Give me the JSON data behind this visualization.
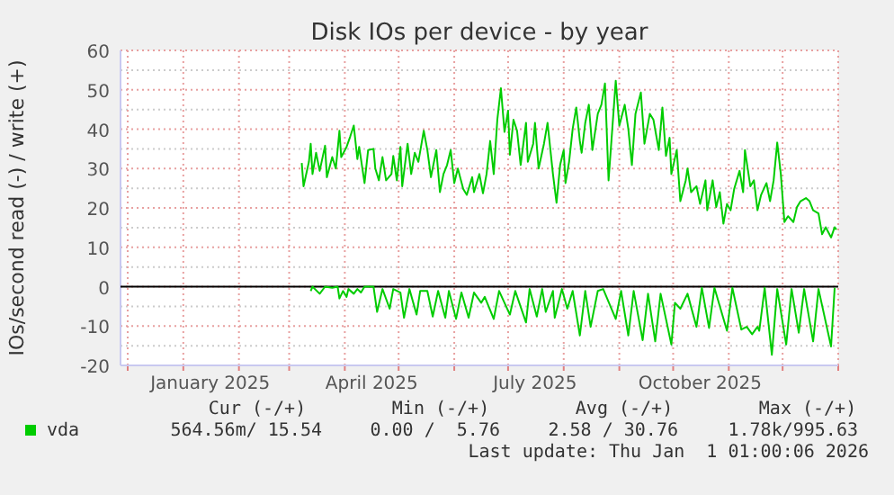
{
  "chart_data": {
    "type": "line",
    "title": "Disk IOs per device - by year",
    "ylabel": "IOs/second read (-) / write (+)",
    "xlim": [
      "2024-11-27",
      "2026-01-01"
    ],
    "xticks": [
      {
        "value": "2024-12-01",
        "label": null
      },
      {
        "value": "2025-01-01",
        "label": null
      },
      {
        "value": "2025-01-16",
        "label": "January 2025"
      },
      {
        "value": "2025-02-01",
        "label": null
      },
      {
        "value": "2025-03-01",
        "label": null
      },
      {
        "value": "2025-04-01",
        "label": null
      },
      {
        "value": "2025-04-16",
        "label": "April 2025"
      },
      {
        "value": "2025-05-01",
        "label": null
      },
      {
        "value": "2025-06-01",
        "label": null
      },
      {
        "value": "2025-07-01",
        "label": null
      },
      {
        "value": "2025-07-16",
        "label": "July 2025"
      },
      {
        "value": "2025-08-01",
        "label": null
      },
      {
        "value": "2025-09-01",
        "label": null
      },
      {
        "value": "2025-10-01",
        "label": null
      },
      {
        "value": "2025-10-16",
        "label": "October 2025"
      },
      {
        "value": "2025-11-01",
        "label": null
      },
      {
        "value": "2025-12-01",
        "label": null
      },
      {
        "value": "2026-01-01",
        "label": null
      }
    ],
    "ylim": [
      -20,
      60
    ],
    "yticks": [
      -20,
      {
        "value": -15,
        "label": null
      },
      -10,
      {
        "value": -5,
        "label": null
      },
      0,
      {
        "value": 5,
        "label": null
      },
      10,
      {
        "value": 15,
        "label": null
      },
      20,
      {
        "value": 25,
        "label": null
      },
      30,
      {
        "value": 35,
        "label": null
      },
      40,
      {
        "value": 45,
        "label": null
      },
      50,
      {
        "value": 55,
        "label": null
      },
      60
    ],
    "grid": true,
    "legend": "bottom",
    "ref_lines": [
      {
        "axis": "y",
        "value": 0,
        "color": "#000000"
      }
    ],
    "annotations": [
      "Cur (-/+)",
      "Min (-/+)",
      "Avg (-/+)",
      "Max (-/+)",
      "564.56m/ 15.54",
      "0.00 /  5.76",
      "2.58 / 30.76",
      "1.78k/995.63",
      "Last update: Thu Jan  1 01:00:06 2026"
    ],
    "series": [
      {
        "name": "vda",
        "color": "#00cc00",
        "x": [
          "2025-03-08",
          "2025-03-09",
          "2025-03-12",
          "2025-03-13",
          "2025-03-14",
          "2025-03-16",
          "2025-03-18",
          "2025-03-21",
          "2025-03-22",
          "2025-03-25",
          "2025-03-27",
          "2025-03-29",
          "2025-03-30",
          "2025-04-02",
          "2025-04-04",
          "2025-04-06",
          "2025-04-08",
          "2025-04-09",
          "2025-04-12",
          "2025-04-14",
          "2025-04-17",
          "2025-04-18",
          "2025-04-20",
          "2025-04-22",
          "2025-04-24",
          "2025-04-27",
          "2025-04-28",
          "2025-04-30",
          "2025-05-02",
          "2025-05-03",
          "2025-05-06",
          "2025-05-08",
          "2025-05-10",
          "2025-05-12",
          "2025-05-15",
          "2025-05-17",
          "2025-05-19",
          "2025-05-22",
          "2025-05-24",
          "2025-05-26",
          "2025-05-28",
          "2025-05-30",
          "2025-06-01",
          "2025-06-03",
          "2025-06-06",
          "2025-06-08",
          "2025-06-11",
          "2025-06-12",
          "2025-06-15",
          "2025-06-17",
          "2025-06-19",
          "2025-06-21",
          "2025-06-23",
          "2025-06-25",
          "2025-06-27",
          "2025-06-29",
          "2025-07-01",
          "2025-07-02",
          "2025-07-04",
          "2025-07-06",
          "2025-07-08",
          "2025-07-11",
          "2025-07-12",
          "2025-07-15",
          "2025-07-16",
          "2025-07-18",
          "2025-07-21",
          "2025-07-23",
          "2025-07-26",
          "2025-07-28",
          "2025-07-30",
          "2025-08-01",
          "2025-08-02",
          "2025-08-04",
          "2025-08-06",
          "2025-08-08",
          "2025-08-10",
          "2025-08-11",
          "2025-08-13",
          "2025-08-15",
          "2025-08-17",
          "2025-08-20",
          "2025-08-22",
          "2025-08-24",
          "2025-08-26",
          "2025-08-28",
          "2025-08-30",
          "2025-09-01",
          "2025-09-04",
          "2025-09-06",
          "2025-09-08",
          "2025-09-10",
          "2025-09-13",
          "2025-09-15",
          "2025-09-18",
          "2025-09-20",
          "2025-09-23",
          "2025-09-25",
          "2025-09-27",
          "2025-09-29",
          "2025-09-30",
          "2025-10-03",
          "2025-10-05",
          "2025-10-08",
          "2025-10-09",
          "2025-10-11",
          "2025-10-14",
          "2025-10-16",
          "2025-10-19",
          "2025-10-20",
          "2025-10-23",
          "2025-10-25",
          "2025-10-27",
          "2025-10-29",
          "2025-10-31",
          "2025-11-02",
          "2025-11-04",
          "2025-11-07",
          "2025-11-09",
          "2025-11-10",
          "2025-11-13",
          "2025-11-15",
          "2025-11-17",
          "2025-11-19",
          "2025-11-22",
          "2025-11-24",
          "2025-11-26",
          "2025-11-28",
          "2025-11-30",
          "2025-12-02",
          "2025-12-04",
          "2025-12-07",
          "2025-12-09",
          "2025-12-11",
          "2025-12-14",
          "2025-12-16",
          "2025-12-18",
          "2025-12-21",
          "2025-12-23",
          "2025-12-25",
          "2025-12-28",
          "2025-12-30",
          "2025-12-31"
        ],
        "values": [
          31.4,
          25.5,
          31.7,
          36.3,
          28.6,
          34,
          29.4,
          35.8,
          27.8,
          32.9,
          30,
          39.6,
          32.9,
          35.5,
          38.1,
          40.9,
          32.4,
          35.5,
          26.3,
          34.7,
          35,
          30,
          27,
          32.9,
          27,
          28.6,
          33.2,
          27,
          35.5,
          25.5,
          36.3,
          28.6,
          34,
          31.7,
          39.6,
          34.7,
          27.8,
          34.7,
          24,
          28.6,
          30.9,
          34.7,
          26.3,
          30,
          24.8,
          23.3,
          27.8,
          24,
          28.6,
          23.7,
          28.6,
          37,
          28.6,
          42.4,
          50.4,
          39.3,
          44.7,
          33.5,
          42.4,
          39.6,
          30.9,
          41.6,
          31.7,
          36.3,
          41.6,
          30,
          36.3,
          41.6,
          28.6,
          21.3,
          30.9,
          34.7,
          26.3,
          31.7,
          40.1,
          45.5,
          37,
          34,
          41.6,
          46.2,
          34.7,
          43.9,
          46.2,
          51.6,
          27,
          39.6,
          52.3,
          40.9,
          46.2,
          40.1,
          30.9,
          43.9,
          49.3,
          36.3,
          43.9,
          42.4,
          34.7,
          45.5,
          33.2,
          37.8,
          28.6,
          34.7,
          21.7,
          27,
          30,
          24,
          25.5,
          21,
          27,
          19.4,
          27,
          20.2,
          24,
          16,
          21,
          19.4,
          24.8,
          29.4,
          24,
          34.7,
          25.5,
          27,
          19.4,
          23.3,
          26.3,
          21.7,
          27,
          36.6,
          28.6,
          16.4,
          17.9,
          16.4,
          20.2,
          21.7,
          22.5,
          21.7,
          19.4,
          18.6,
          13.3,
          15.1,
          12.5,
          15.1,
          14.5
        ]
      },
      {
        "color": "#00cc00",
        "x": [
          "2025-03-13",
          "2025-03-14",
          "2025-03-18",
          "2025-03-21",
          "2025-03-25",
          "2025-03-28",
          "2025-03-29",
          "2025-03-31",
          "2025-04-02",
          "2025-04-03",
          "2025-04-06",
          "2025-04-08",
          "2025-04-10",
          "2025-04-12",
          "2025-04-17",
          "2025-04-19",
          "2025-04-22",
          "2025-04-26",
          "2025-04-28",
          "2025-05-02",
          "2025-05-04",
          "2025-05-07",
          "2025-05-11",
          "2025-05-13",
          "2025-05-17",
          "2025-05-20",
          "2025-05-23",
          "2025-05-27",
          "2025-05-29",
          "2025-06-02",
          "2025-06-05",
          "2025-06-09",
          "2025-06-12",
          "2025-06-16",
          "2025-06-18",
          "2025-06-23",
          "2025-06-26",
          "2025-07-02",
          "2025-07-05",
          "2025-07-11",
          "2025-07-13",
          "2025-07-17",
          "2025-07-20",
          "2025-07-22",
          "2025-07-26",
          "2025-07-27",
          "2025-07-31",
          "2025-08-03",
          "2025-08-06",
          "2025-08-10",
          "2025-08-13",
          "2025-08-16",
          "2025-08-20",
          "2025-08-23",
          "2025-08-30",
          "2025-09-02",
          "2025-09-06",
          "2025-09-09",
          "2025-09-14",
          "2025-09-17",
          "2025-09-21",
          "2025-09-24",
          "2025-09-30",
          "2025-10-02",
          "2025-10-05",
          "2025-10-09",
          "2025-10-14",
          "2025-10-17",
          "2025-10-21",
          "2025-10-24",
          "2025-10-31",
          "2025-11-03",
          "2025-11-08",
          "2025-11-11",
          "2025-11-14",
          "2025-11-17",
          "2025-11-18",
          "2025-11-21",
          "2025-11-25",
          "2025-11-28",
          "2025-12-03",
          "2025-12-06",
          "2025-12-10",
          "2025-12-13",
          "2025-12-18",
          "2025-12-21",
          "2025-12-28",
          "2025-12-30"
        ],
        "values": [
          -1.1,
          0,
          -1.8,
          0,
          -0.3,
          0,
          -3,
          -1.1,
          -2.6,
          -0.6,
          -1.8,
          -0.6,
          -1.5,
          0,
          0,
          -6.4,
          -0.6,
          -5.6,
          -0.6,
          -1.5,
          -7.9,
          -0.6,
          -7.1,
          -1.1,
          -1.1,
          -7.6,
          -1.1,
          -7.9,
          -1.1,
          -8.2,
          -1.5,
          -7.9,
          -1.5,
          -4.1,
          -2.6,
          -8.2,
          -1.1,
          -7.1,
          -1.1,
          -9.1,
          -0.6,
          -7.6,
          -0.6,
          -6.4,
          -1.1,
          -7.9,
          -0.6,
          -5.6,
          -1.1,
          -12.4,
          -1.1,
          -10.2,
          -1.1,
          -0.6,
          -8.2,
          -1.1,
          -12.4,
          -1.1,
          -13.6,
          -1.8,
          -13.9,
          -1.8,
          -14.7,
          -4.1,
          -5.6,
          -1.8,
          -10.2,
          -0.3,
          -10.5,
          -0.3,
          -11.2,
          -0.3,
          -10.9,
          -10.2,
          -12.1,
          -10.2,
          -11.2,
          -0.3,
          -17.3,
          -0.6,
          -14.7,
          -0.6,
          -11.7,
          -0.6,
          -13.9,
          -0.6,
          -15.2,
          -0.3
        ]
      }
    ]
  }
}
